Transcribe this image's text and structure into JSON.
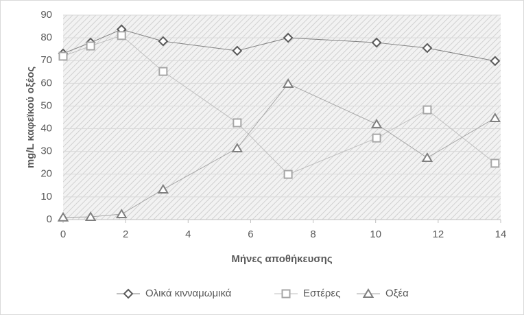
{
  "chart_data": {
    "type": "line",
    "x_label": "Μήνες αποθήκευσης",
    "y_label": "mg/L καφεϊκού οξέος",
    "x": [
      0,
      0.88,
      1.87,
      3.2,
      5.57,
      7.2,
      10.03,
      11.65,
      13.82
    ],
    "series": [
      {
        "name": "Ολικά κινναμωμικά",
        "color": "#595959",
        "line_color": "#808080",
        "marker": "diamond",
        "values": [
          73.1,
          77.9,
          83.7,
          78.5,
          74.3,
          80,
          77.9,
          75.5,
          69.8
        ]
      },
      {
        "name": "Εστέρες",
        "color": "#a6a6a6",
        "line_color": "#bfbfbf",
        "marker": "square",
        "values": [
          71.9,
          76.4,
          81,
          65.2,
          42.6,
          19.9,
          35.9,
          48.3,
          24.8
        ]
      },
      {
        "name": "Οξέα",
        "color": "#7f7f7f",
        "line_color": "#a6a6a6",
        "marker": "triangle",
        "values": [
          1,
          1.2,
          2.4,
          13.3,
          31.4,
          59.8,
          42,
          27.2,
          44.7
        ]
      }
    ],
    "xlim": [
      0,
      14
    ],
    "xticks": [
      0,
      2,
      4,
      6,
      8,
      10,
      12,
      14
    ],
    "ylim": [
      0,
      90
    ],
    "yticks": [
      0,
      10,
      20,
      30,
      40,
      50,
      60,
      70,
      80,
      90
    ],
    "grid": true,
    "legend": "bottom"
  }
}
